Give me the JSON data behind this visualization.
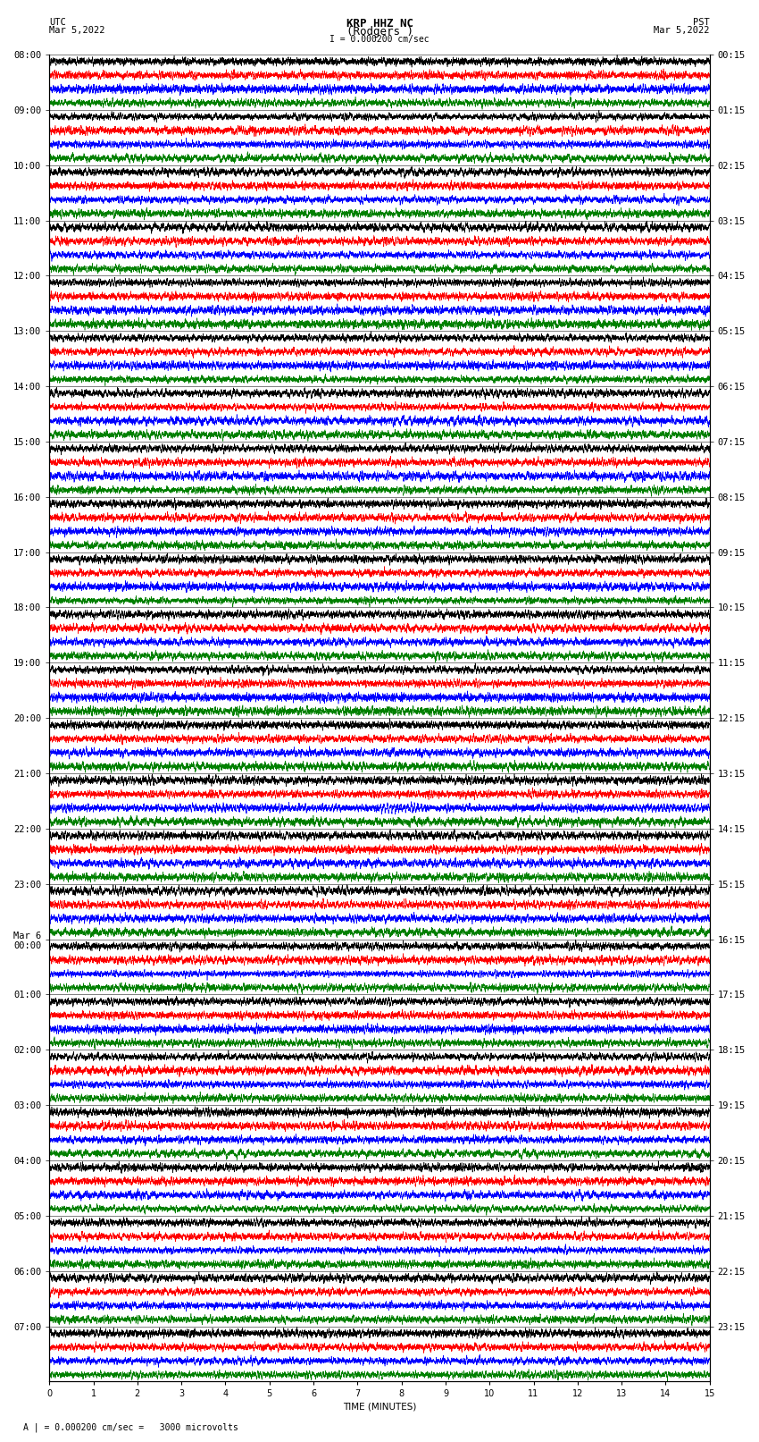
{
  "title_line1": "KRP HHZ NC",
  "title_line2": "(Rodgers )",
  "scale_label": "I = 0.000200 cm/sec",
  "bottom_label": "A | = 0.000200 cm/sec =   3000 microvolts",
  "xlabel": "TIME (MINUTES)",
  "left_times": [
    "08:00",
    "09:00",
    "10:00",
    "11:00",
    "12:00",
    "13:00",
    "14:00",
    "15:00",
    "16:00",
    "17:00",
    "18:00",
    "19:00",
    "20:00",
    "21:00",
    "22:00",
    "23:00",
    "Mar 6\n00:00",
    "01:00",
    "02:00",
    "03:00",
    "04:00",
    "05:00",
    "06:00",
    "07:00"
  ],
  "right_times": [
    "00:15",
    "01:15",
    "02:15",
    "03:15",
    "04:15",
    "05:15",
    "06:15",
    "07:15",
    "08:15",
    "09:15",
    "10:15",
    "11:15",
    "12:15",
    "13:15",
    "14:15",
    "15:15",
    "16:15",
    "17:15",
    "18:15",
    "19:15",
    "20:15",
    "21:15",
    "22:15",
    "23:15"
  ],
  "n_rows": 24,
  "n_cols": 4,
  "colors": [
    "black",
    "red",
    "blue",
    "green"
  ],
  "fig_width": 8.5,
  "fig_height": 16.13,
  "bg_color": "white",
  "x_ticks": [
    0,
    1,
    2,
    3,
    4,
    5,
    6,
    7,
    8,
    9,
    10,
    11,
    12,
    13,
    14,
    15
  ],
  "title_fontsize": 9,
  "label_fontsize": 7.5,
  "tick_fontsize": 7,
  "time_label_fontsize": 7.5
}
